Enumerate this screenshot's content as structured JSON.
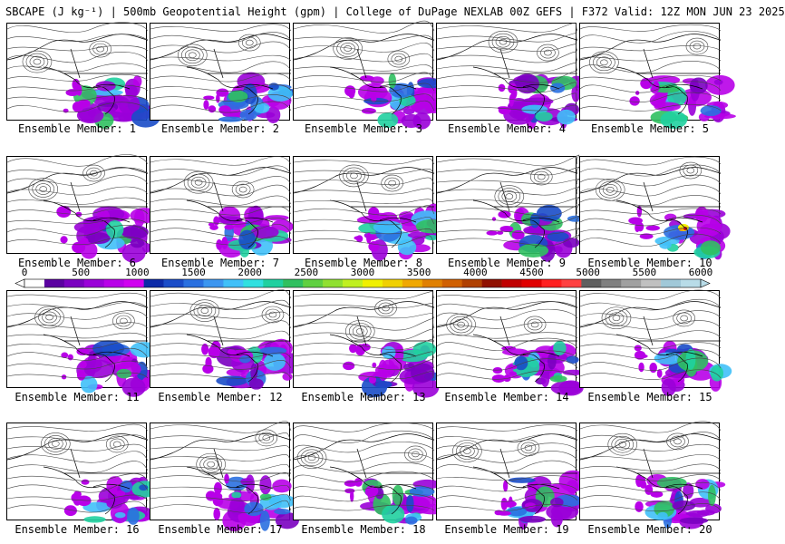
{
  "header": {
    "title": "SBCAPE (J kg⁻¹) | 500mb Geopotential Height (gpm) | College of DuPage NEXLAB 00Z GEFS | F372 Valid: 12Z MON JUN 23 2025"
  },
  "colorbar": {
    "ticks": [
      "0",
      "500",
      "1000",
      "1500",
      "2000",
      "2500",
      "3000",
      "3500",
      "4000",
      "4500",
      "5000",
      "5500",
      "6000"
    ],
    "colors": [
      "#ffffff",
      "#5a00a0",
      "#7a00c0",
      "#9a00d8",
      "#b800e8",
      "#d000f0",
      "#0c2aa8",
      "#1a4cc8",
      "#2a70e0",
      "#3c96f0",
      "#40c0f8",
      "#30e0e0",
      "#20d0a0",
      "#30c060",
      "#60d040",
      "#90e030",
      "#c0f020",
      "#f0f000",
      "#f0d000",
      "#f0a800",
      "#e08000",
      "#d06000",
      "#b04000",
      "#901000",
      "#c00000",
      "#e00000",
      "#ff2020",
      "#ff4040",
      "#606060",
      "#808080",
      "#a0a0a0",
      "#c0c0c0",
      "#a0c8d8",
      "#b8dce8"
    ],
    "value_range": [
      0,
      6000
    ]
  },
  "members": [
    {
      "label": "Ensemble Member: 1"
    },
    {
      "label": "Ensemble Member: 2"
    },
    {
      "label": "Ensemble Member: 3"
    },
    {
      "label": "Ensemble Member: 4"
    },
    {
      "label": "Ensemble Member: 5"
    },
    {
      "label": "Ensemble Member: 6"
    },
    {
      "label": "Ensemble Member: 7"
    },
    {
      "label": "Ensemble Member: 8"
    },
    {
      "label": "Ensemble Member: 9"
    },
    {
      "label": "Ensemble Member: 10"
    },
    {
      "label": "Ensemble Member: 11"
    },
    {
      "label": "Ensemble Member: 12"
    },
    {
      "label": "Ensemble Member: 13"
    },
    {
      "label": "Ensemble Member: 14"
    },
    {
      "label": "Ensemble Member: 15"
    },
    {
      "label": "Ensemble Member: 16"
    },
    {
      "label": "Ensemble Member: 17"
    },
    {
      "label": "Ensemble Member: 18"
    },
    {
      "label": "Ensemble Member: 19"
    },
    {
      "label": "Ensemble Member: 20"
    }
  ]
}
